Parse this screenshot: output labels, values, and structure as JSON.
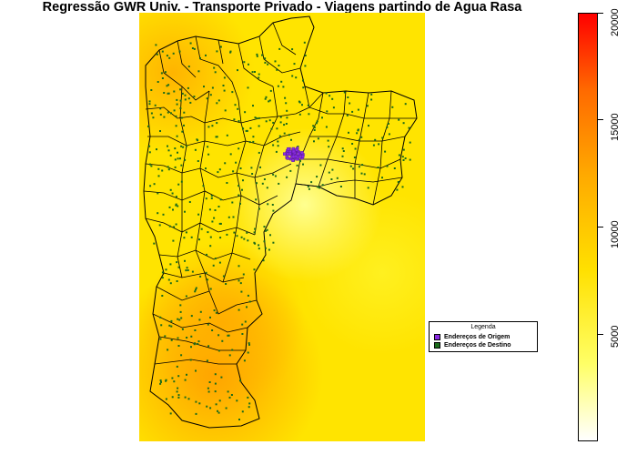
{
  "title": "Regressão GWR Univ. - Transporte Privado - Viagens partindo de Agua Rasa",
  "legend": {
    "title": "Legenda",
    "items": [
      {
        "label": "Endereços de Origem",
        "color": "#8a2be2"
      },
      {
        "label": "Endereços de Destino",
        "color": "#1a6b1a"
      }
    ]
  },
  "colorbar": {
    "min": 0,
    "max": 20000,
    "ticks": [
      "5000",
      "10000",
      "15000",
      "20000"
    ],
    "colors": [
      "#ffffff",
      "#ffff66",
      "#ffe000",
      "#ffaa00",
      "#ff6a00",
      "#ff0000"
    ]
  },
  "colors": {
    "map_background": "#ffe400",
    "boundary": "#000000",
    "origin_points": "#8a2be2",
    "destination_points": "#1a6b1a"
  }
}
